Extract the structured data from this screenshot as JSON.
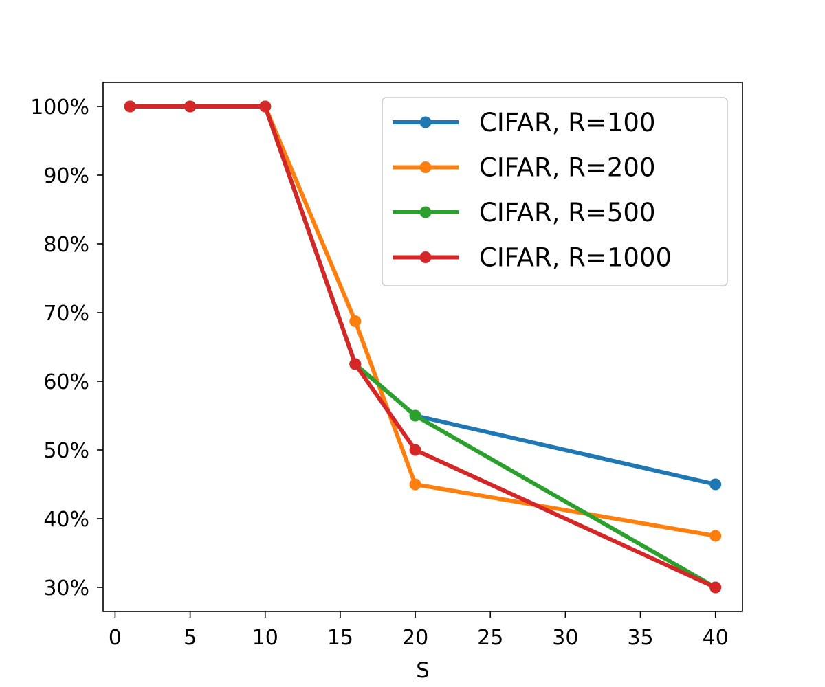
{
  "chart_data": {
    "type": "line",
    "xlabel": "S",
    "ylabel": "",
    "xlim": [
      -0.8,
      41.8
    ],
    "ylim": [
      26.5,
      103.5
    ],
    "x_ticks": [
      0,
      5,
      10,
      15,
      20,
      25,
      30,
      35,
      40
    ],
    "x_tick_labels": [
      "0",
      "5",
      "10",
      "15",
      "20",
      "25",
      "30",
      "35",
      "40"
    ],
    "y_ticks": [
      30,
      40,
      50,
      60,
      70,
      80,
      90,
      100
    ],
    "y_tick_labels": [
      "30%",
      "40%",
      "50%",
      "60%",
      "70%",
      "80%",
      "90%",
      "100%"
    ],
    "grid": false,
    "legend_position": "top-right",
    "series": [
      {
        "name": "CIFAR, R=100",
        "color": "#1f77b4",
        "x": [
          1,
          5,
          10,
          16,
          20,
          40
        ],
        "y": [
          100,
          100,
          100,
          62.5,
          55,
          45
        ]
      },
      {
        "name": "CIFAR, R=200",
        "color": "#ff7f0e",
        "x": [
          1,
          5,
          10,
          16,
          20,
          40
        ],
        "y": [
          100,
          100,
          100,
          68.75,
          45,
          37.5
        ]
      },
      {
        "name": "CIFAR, R=500",
        "color": "#2ca02c",
        "x": [
          1,
          5,
          10,
          16,
          20,
          40
        ],
        "y": [
          100,
          100,
          100,
          62.5,
          55,
          30
        ]
      },
      {
        "name": "CIFAR, R=1000",
        "color": "#d62728",
        "x": [
          1,
          5,
          10,
          16,
          20,
          40
        ],
        "y": [
          100,
          100,
          100,
          62.5,
          50,
          30
        ]
      }
    ]
  }
}
